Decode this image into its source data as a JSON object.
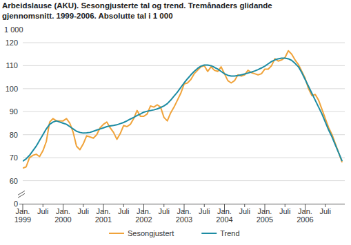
{
  "chart_data": {
    "type": "line",
    "title": "Arbeidslause (AKU). Sesongjusterte tal og trend. Tremånaders glidande gjennomsnitt. 1999-2006. Absolutte tal i 1 000",
    "y_label": "1 000",
    "categories": [
      "Jan. 1999",
      null,
      null,
      null,
      null,
      null,
      "Juli",
      null,
      null,
      null,
      null,
      null,
      "Jan. 2000",
      null,
      null,
      null,
      null,
      null,
      "Juli",
      null,
      null,
      null,
      null,
      null,
      "Jan. 2001",
      null,
      null,
      null,
      null,
      null,
      "Juli",
      null,
      null,
      null,
      null,
      null,
      "Jan. 2002",
      null,
      null,
      null,
      null,
      null,
      "Juli",
      null,
      null,
      null,
      null,
      null,
      "Jan. 2003",
      null,
      null,
      null,
      null,
      null,
      "Juli",
      null,
      null,
      null,
      null,
      null,
      "Jan. 2004",
      null,
      null,
      null,
      null,
      null,
      "Juli",
      null,
      null,
      null,
      null,
      null,
      "Jan. 2005",
      null,
      null,
      null,
      null,
      null,
      "Juli",
      null,
      null,
      null,
      null,
      null,
      "Jan. 2006",
      null,
      null,
      null,
      null,
      null,
      "Juli",
      null,
      null,
      null,
      null,
      null
    ],
    "series": [
      {
        "name": "Sesongjustert",
        "color": "#f0a33a",
        "values": [
          65.5,
          66,
          70,
          71,
          71.5,
          70.5,
          73,
          77,
          85.5,
          87,
          86,
          86,
          86,
          87,
          85,
          81,
          75,
          73.5,
          76,
          79.5,
          79,
          78.5,
          80,
          83,
          84.5,
          85.5,
          83,
          81,
          78,
          80.5,
          84,
          83.5,
          84.5,
          87,
          90.5,
          88,
          88,
          89,
          92.5,
          92,
          93,
          92,
          87.5,
          86,
          89.5,
          92,
          95,
          98,
          102,
          102.5,
          104,
          106.5,
          108,
          109.5,
          110,
          107.5,
          109.5,
          108,
          107.5,
          109.5,
          106.5,
          103.5,
          102.5,
          103.5,
          106,
          105.5,
          106,
          108,
          107,
          106.5,
          106,
          106.5,
          108.5,
          108.5,
          110,
          113,
          112,
          112.5,
          113.5,
          116.5,
          115,
          112.5,
          110.5,
          107.5,
          104.5,
          100,
          97,
          97.5,
          95,
          91,
          87,
          83,
          80,
          76,
          72,
          68
        ]
      },
      {
        "name": "Trend",
        "color": "#1d8ca3",
        "values": [
          68.5,
          69.5,
          71,
          73,
          75,
          77.5,
          80,
          82.5,
          84.5,
          85.5,
          86,
          85.5,
          85,
          84.5,
          83.5,
          82.5,
          81.5,
          81,
          80.7,
          80.8,
          81,
          81.5,
          82,
          82.5,
          83,
          83.5,
          83.8,
          84,
          84.3,
          84.8,
          85.3,
          86,
          86.8,
          87.5,
          88.3,
          89,
          89.8,
          90.2,
          90.5,
          90.8,
          91.2,
          91.8,
          92.5,
          93.5,
          95,
          96.8,
          98.5,
          100.5,
          102.5,
          104.3,
          106,
          107.5,
          108.8,
          109.8,
          110.3,
          110.3,
          110,
          109.3,
          108.5,
          107.5,
          106.5,
          105.8,
          105.5,
          105.5,
          105.7,
          106,
          106.4,
          106.8,
          107.2,
          107.7,
          108.3,
          109,
          109.8,
          110.8,
          111.8,
          112.5,
          113,
          113.3,
          113.3,
          113,
          112.3,
          111,
          109.5,
          107,
          104,
          101,
          98,
          95,
          92,
          89,
          85.5,
          82,
          79,
          75.5,
          72,
          68.5
        ]
      }
    ],
    "ylim": [
      0,
      120
    ],
    "yticks": [
      0,
      60,
      70,
      80,
      90,
      100,
      110,
      120
    ],
    "grid": true,
    "legend": "bottom"
  }
}
